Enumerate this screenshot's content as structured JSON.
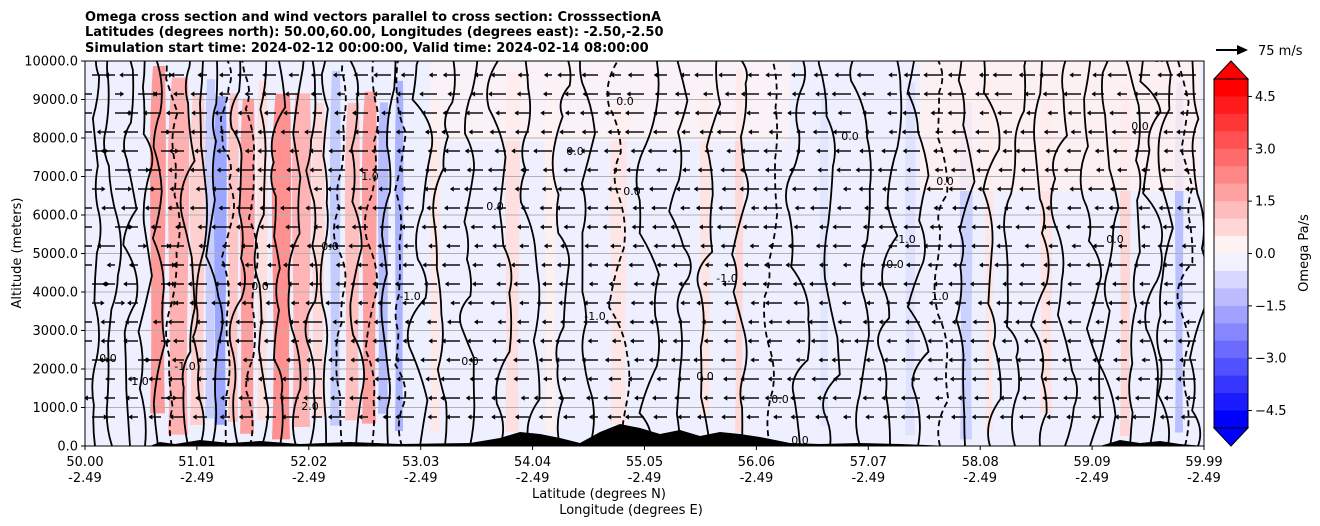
{
  "chart_data": {
    "type": "filled-contour",
    "title": [
      "Omega cross section and wind vectors parallel to cross section: CrosssectionA",
      "Latitudes (degrees north): 50.00,60.00, Longitudes (degrees east): -2.50,-2.50",
      "Simulation start time: 2024-02-12 00:00:00, Valid time: 2024-02-14 08:00:00"
    ],
    "ylabel": "Altitude (meters)",
    "xlabel_lat": "Latitude (degrees N)",
    "xlabel_lon": "Longitude (degrees E)",
    "ylim": [
      0,
      10000
    ],
    "yticks": [
      "0.0",
      "1000.0",
      "2000.0",
      "3000.0",
      "4000.0",
      "5000.0",
      "6000.0",
      "7000.0",
      "8000.0",
      "9000.0",
      "10000.0"
    ],
    "x_latitudes": [
      "50.00",
      "51.01",
      "52.02",
      "53.03",
      "54.04",
      "55.05",
      "56.06",
      "57.07",
      "58.08",
      "59.09",
      "59.99"
    ],
    "x_longitudes": [
      "-2.49",
      "-2.49",
      "-2.49",
      "-2.49",
      "-2.49",
      "-2.49",
      "-2.49",
      "-2.49",
      "-2.49",
      "-2.49",
      "-2.49"
    ],
    "colorbar": {
      "label": "Omega Pa/s",
      "ticks": [
        "4.5",
        "3.0",
        "1.5",
        "0.0",
        "−1.5",
        "−3.0",
        "−4.5"
      ],
      "range": [
        -5.0,
        5.0
      ],
      "extend": "both"
    },
    "contour_labels": [
      "0.0",
      "1.0",
      "-1.0",
      "2.0",
      "0.0",
      "0.0",
      "1.0",
      "-1.0",
      "0.0",
      "0.0",
      "0.0",
      "0.0",
      "-1.0",
      "0.0",
      "-1.0",
      "0.0",
      "0.0",
      "0.0",
      "0.0",
      "0.0",
      "-1.0",
      "0.0",
      "1.0",
      "0.0",
      "0.0",
      "0.0"
    ],
    "quiver_key": {
      "label": "75 m/s",
      "value": 75
    },
    "colors": {
      "positive": "#ff0000",
      "negative": "#0000ff",
      "neutral": "#ffffff",
      "terrain": "#000000"
    }
  }
}
